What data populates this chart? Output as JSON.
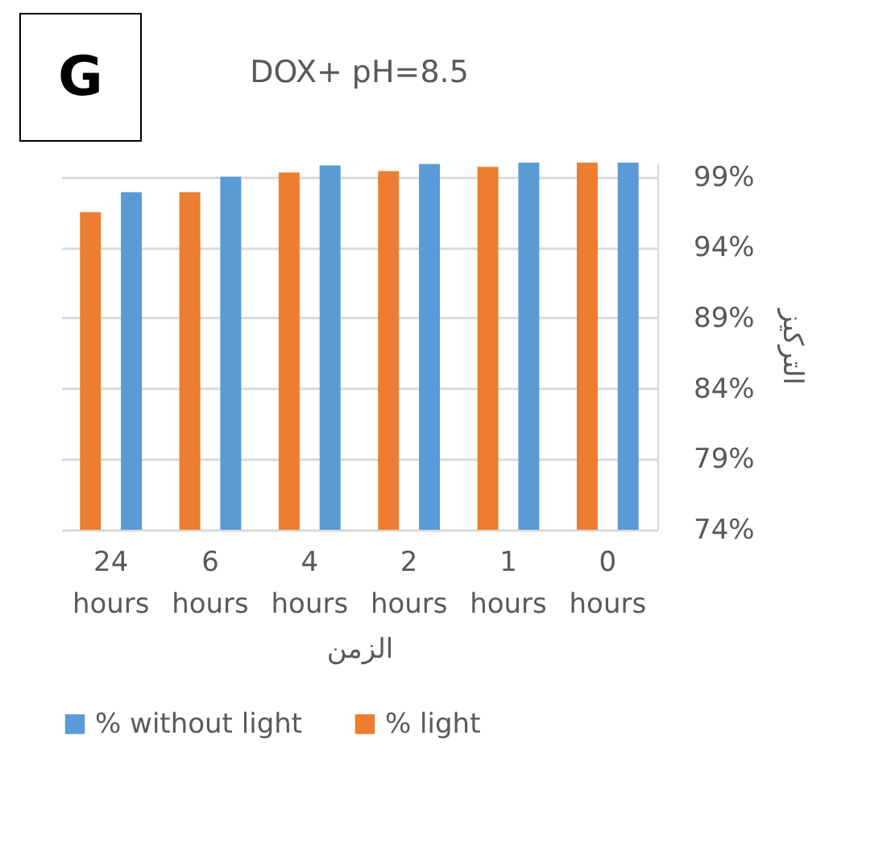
{
  "chart_data": {
    "type": "bar",
    "title": "DOX+ pH=8.5",
    "xlabel": "الزمن",
    "ylabel": "التركيز",
    "annotations": [
      "G"
    ],
    "categories": [
      "24 hours",
      "6 hours",
      "4 hours",
      "2 hours",
      "1 hours",
      "0 hours"
    ],
    "series": [
      {
        "name": "% without light",
        "color": "#5b9bd5",
        "values": [
          97.9,
          99.0,
          99.8,
          99.9,
          100.0,
          100.0
        ]
      },
      {
        "name": "% light",
        "color": "#ed7d31",
        "values": [
          96.5,
          97.9,
          99.3,
          99.4,
          99.7,
          100.0
        ]
      }
    ],
    "ylim": [
      74,
      100
    ],
    "yticks": [
      {
        "value": 74,
        "label": "74%"
      },
      {
        "value": 79,
        "label": "79%"
      },
      {
        "value": 84,
        "label": "84%"
      },
      {
        "value": 89,
        "label": "89%"
      },
      {
        "value": 94,
        "label": "94%"
      },
      {
        "value": 99,
        "label": "99%"
      }
    ],
    "grid": "y",
    "legend": "bottom"
  }
}
